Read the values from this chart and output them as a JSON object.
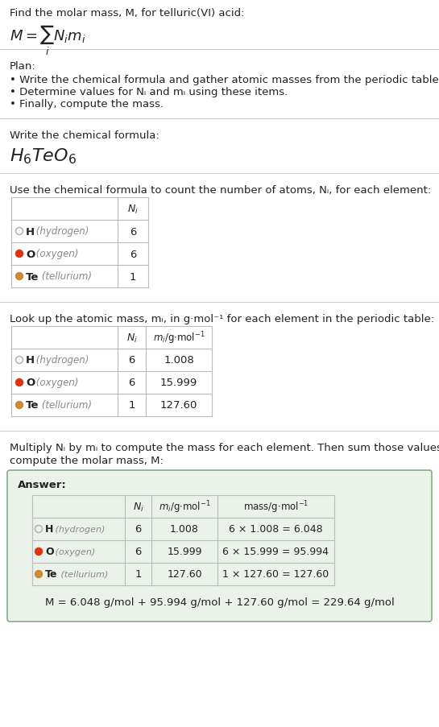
{
  "bg_color": "#ffffff",
  "title_line1": "Find the molar mass, M, for telluric(VI) acid:",
  "plan_header": "Plan:",
  "plan_bullets": [
    "• Write the chemical formula and gather atomic masses from the periodic table.",
    "• Determine values for Nᵢ and mᵢ using these items.",
    "• Finally, compute the mass."
  ],
  "formula_header": "Write the chemical formula:",
  "table1_header": "Use the chemical formula to count the number of atoms, Nᵢ, for each element:",
  "table2_header": "Look up the atomic mass, mᵢ, in g·mol⁻¹ for each element in the periodic table:",
  "answer_intro": "Multiply Nᵢ by mᵢ to compute the mass for each element. Then sum those values to compute the molar mass, M:",
  "answer_label": "Answer:",
  "elements": [
    {
      "symbol": "H",
      "name": "hydrogen",
      "color": "#bbbbbb",
      "filled": false,
      "Ni": "6",
      "mi": "1.008",
      "mass": "6 × 1.008 = 6.048"
    },
    {
      "symbol": "O",
      "name": "oxygen",
      "color": "#dd3311",
      "filled": true,
      "Ni": "6",
      "mi": "15.999",
      "mass": "6 × 15.999 = 95.994"
    },
    {
      "symbol": "Te",
      "name": "tellurium",
      "color": "#cc8833",
      "filled": true,
      "Ni": "1",
      "mi": "127.60",
      "mass": "1 × 127.60 = 127.60"
    }
  ],
  "final_answer": "M = 6.048 g/mol + 95.994 g/mol + 127.60 g/mol = 229.64 g/mol",
  "answer_box_color": "#eaf2ea",
  "answer_box_border": "#88aa88",
  "sep_color": "#cccccc",
  "table_line_color": "#bbbbbb",
  "text_color": "#222222",
  "gray_color": "#888888"
}
